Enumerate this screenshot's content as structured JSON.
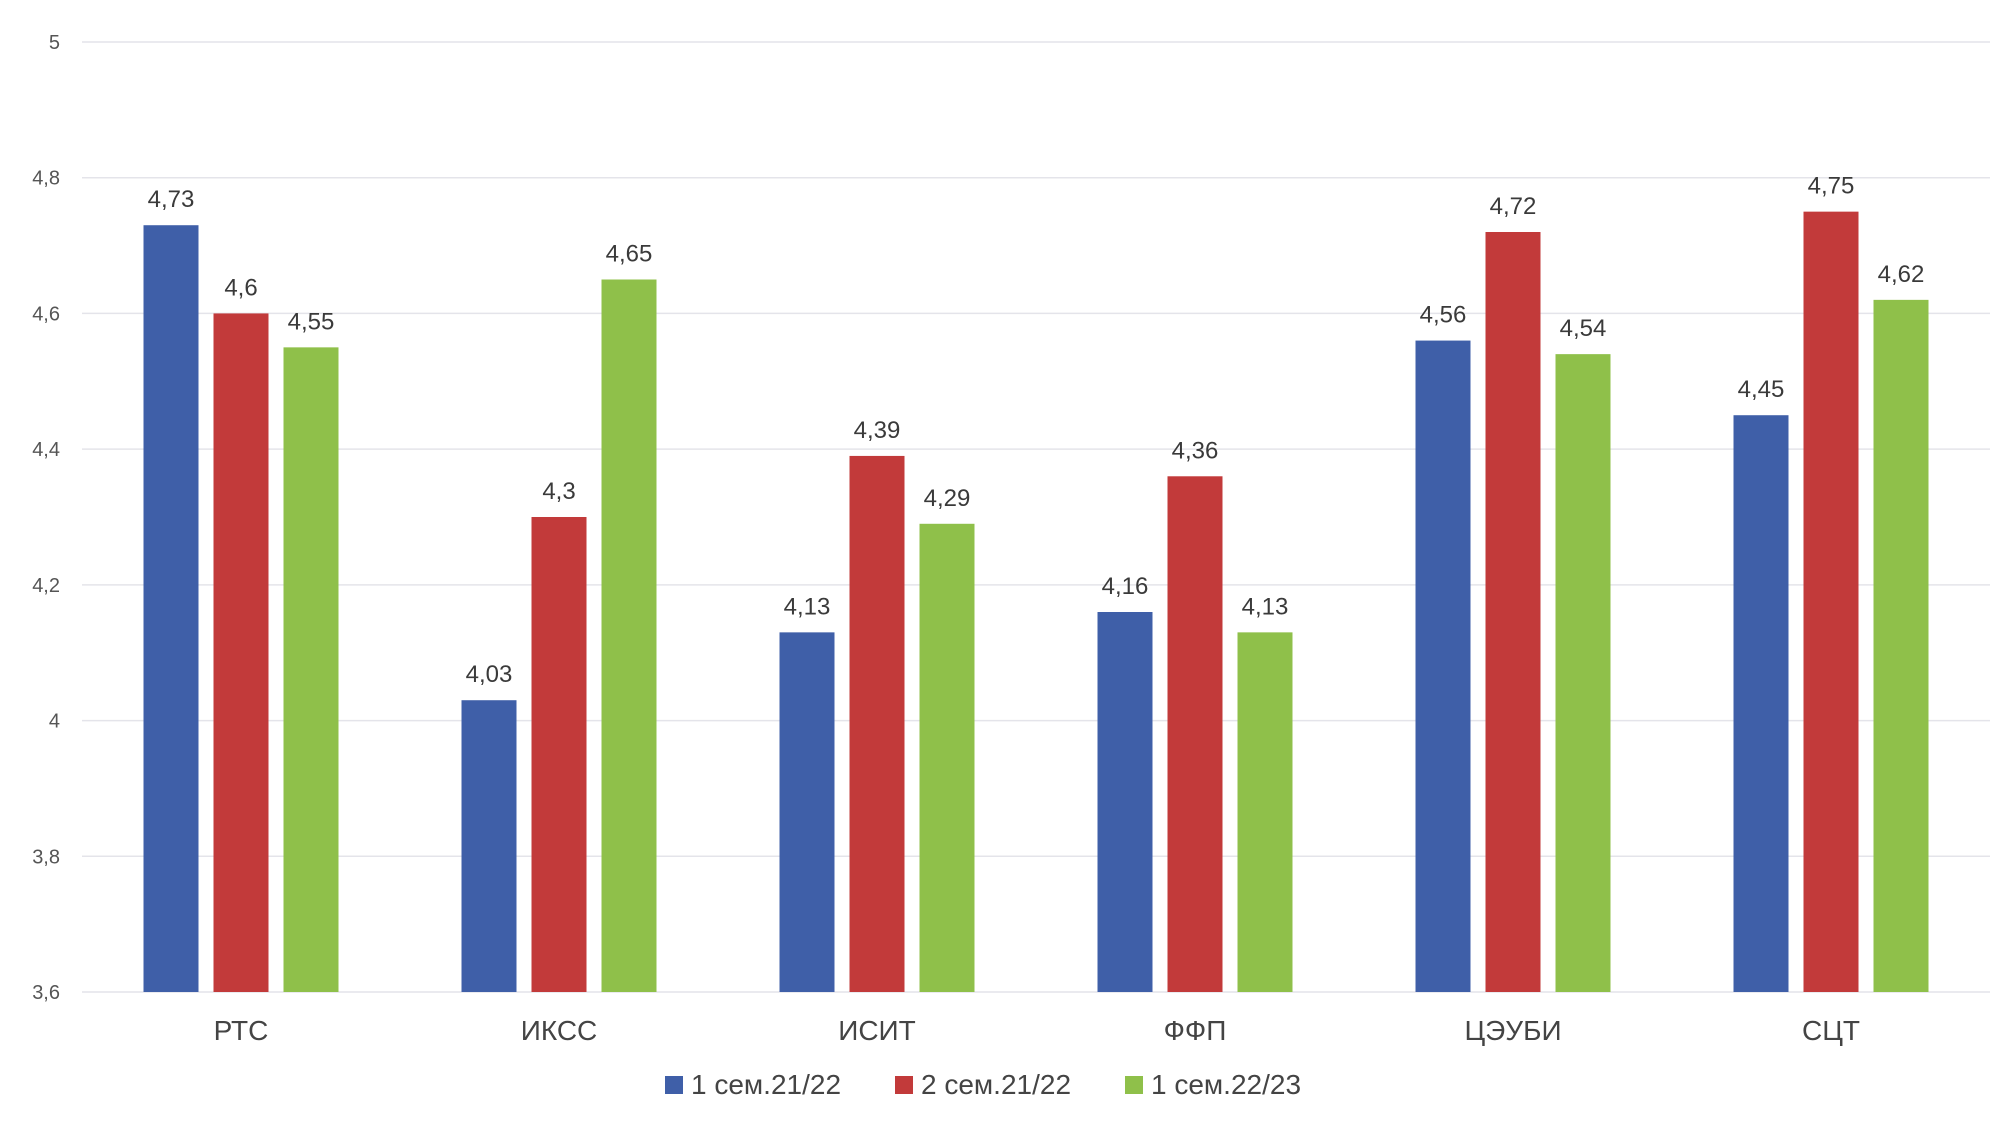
{
  "chart_data": {
    "type": "bar",
    "categories": [
      "РТС",
      "ИКСС",
      "ИСИТ",
      "ФФП",
      "ЦЭУБИ",
      "СЦТ"
    ],
    "series": [
      {
        "name": "1 сем.21/22",
        "color": "#3f5fa8",
        "values": [
          4.73,
          4.03,
          4.13,
          4.16,
          4.56,
          4.45
        ],
        "labels": [
          "4,73",
          "4,03",
          "4,13",
          "4,16",
          "4,56",
          "4,45"
        ]
      },
      {
        "name": "2 сем.21/22",
        "color": "#c23a3a",
        "values": [
          4.6,
          4.3,
          4.39,
          4.36,
          4.72,
          4.75
        ],
        "labels": [
          "4,6",
          "4,3",
          "4,39",
          "4,36",
          "4,72",
          "4,75"
        ]
      },
      {
        "name": "1 сем.22/23",
        "color": "#8fc04a",
        "values": [
          4.55,
          4.65,
          4.29,
          4.13,
          4.54,
          4.62
        ],
        "labels": [
          "4,55",
          "4,65",
          "4,29",
          "4,13",
          "4,54",
          "4,62"
        ]
      }
    ],
    "ylim": [
      3.6,
      5
    ],
    "yticks": [
      3.6,
      3.8,
      4,
      4.2,
      4.4,
      4.6,
      4.8,
      5
    ],
    "ytick_labels": [
      "3,6",
      "3,8",
      "4",
      "4,2",
      "4,4",
      "4,6",
      "4,8",
      "5"
    ],
    "grid": true,
    "legend": "bottom"
  }
}
